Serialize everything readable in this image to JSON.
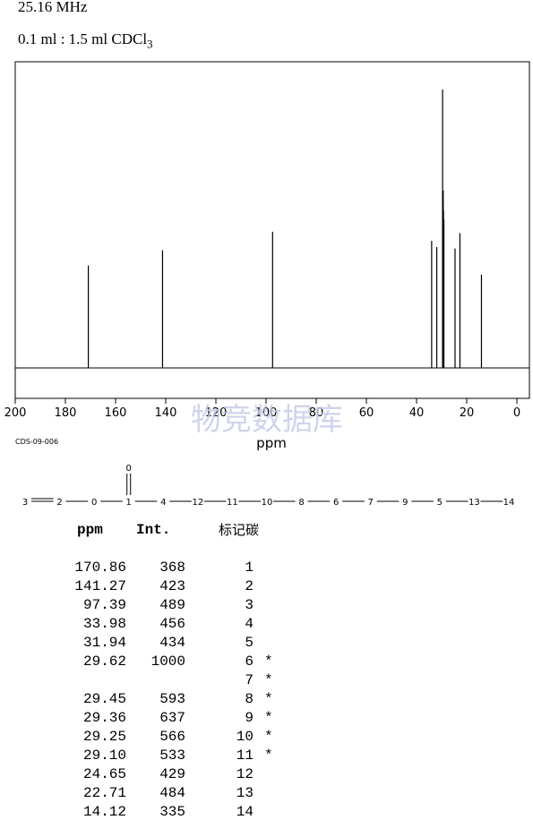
{
  "header": {
    "frequency": "25.16 MHz",
    "sample_prefix": "0.1 ml : 1.5 ml CDCl",
    "sample_subscript": "3"
  },
  "chart_data": {
    "type": "nmr_spectrum",
    "xlabel": "ppm",
    "xlim": [
      200,
      0
    ],
    "ticks": [
      "200",
      "180",
      "160",
      "140",
      "120",
      "100",
      "80",
      "60",
      "40",
      "20",
      "0"
    ],
    "tick_values": [
      200,
      180,
      160,
      140,
      120,
      100,
      80,
      60,
      40,
      20,
      0
    ],
    "watermark": "物竞数据库",
    "peaks": [
      {
        "ppm": 170.86,
        "intensity": 368
      },
      {
        "ppm": 141.27,
        "intensity": 423
      },
      {
        "ppm": 97.39,
        "intensity": 489
      },
      {
        "ppm": 33.98,
        "intensity": 456
      },
      {
        "ppm": 31.94,
        "intensity": 434
      },
      {
        "ppm": 29.62,
        "intensity": 1000
      },
      {
        "ppm": 29.45,
        "intensity": 593
      },
      {
        "ppm": 29.36,
        "intensity": 637
      },
      {
        "ppm": 29.25,
        "intensity": 566
      },
      {
        "ppm": 29.1,
        "intensity": 533
      },
      {
        "ppm": 24.65,
        "intensity": 429
      },
      {
        "ppm": 22.71,
        "intensity": 484
      },
      {
        "ppm": 14.12,
        "intensity": 335
      }
    ]
  },
  "spectrum_code": "CDS-09-006",
  "structure": {
    "top_atom": "0",
    "chain": [
      "3",
      "2",
      "0",
      "1",
      "4",
      "12",
      "11",
      "10",
      "8",
      "6",
      "7",
      "9",
      "5",
      "13",
      "14"
    ]
  },
  "table": {
    "headers": {
      "ppm": "ppm",
      "int": "Int.",
      "label": "标记碳"
    },
    "rows": [
      {
        "ppm": "170.86",
        "int": "368",
        "label": "1",
        "star": ""
      },
      {
        "ppm": "141.27",
        "int": "423",
        "label": "2",
        "star": ""
      },
      {
        "ppm": "97.39",
        "int": "489",
        "label": "3",
        "star": ""
      },
      {
        "ppm": "33.98",
        "int": "456",
        "label": "4",
        "star": ""
      },
      {
        "ppm": "31.94",
        "int": "434",
        "label": "5",
        "star": ""
      },
      {
        "ppm": "29.62",
        "int": "1000",
        "label": "6",
        "star": "*"
      },
      {
        "ppm": "",
        "int": "",
        "label": "7",
        "star": "*"
      },
      {
        "ppm": "29.45",
        "int": "593",
        "label": "8",
        "star": "*"
      },
      {
        "ppm": "29.36",
        "int": "637",
        "label": "9",
        "star": "*"
      },
      {
        "ppm": "29.25",
        "int": "566",
        "label": "10",
        "star": "*"
      },
      {
        "ppm": "29.10",
        "int": "533",
        "label": "11",
        "star": "*"
      },
      {
        "ppm": "24.65",
        "int": "429",
        "label": "12",
        "star": ""
      },
      {
        "ppm": "22.71",
        "int": "484",
        "label": "13",
        "star": ""
      },
      {
        "ppm": "14.12",
        "int": "335",
        "label": "14",
        "star": ""
      }
    ]
  }
}
